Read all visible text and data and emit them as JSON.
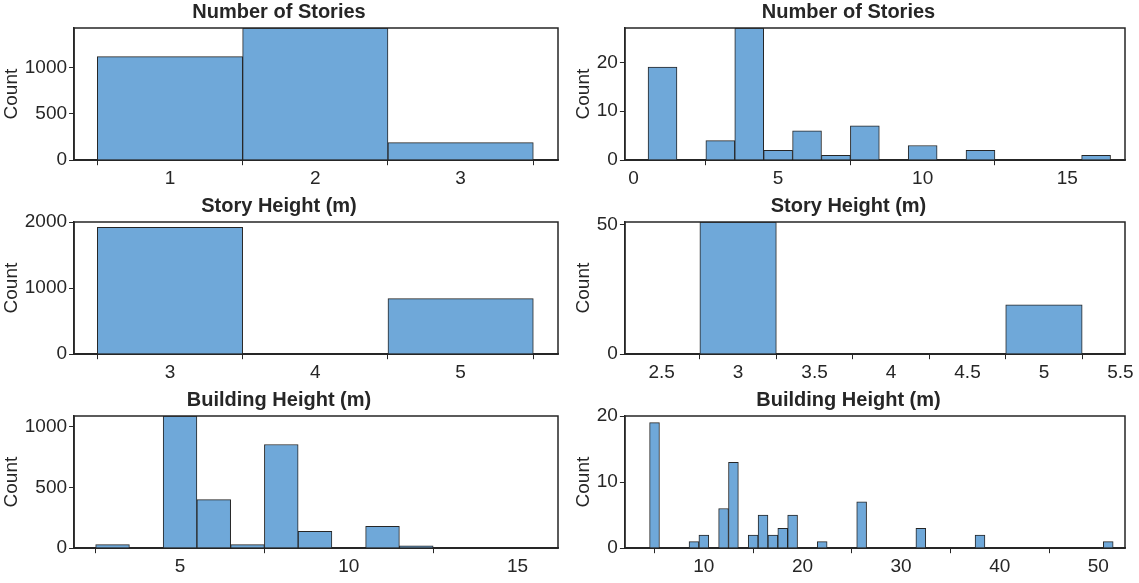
{
  "chart_data": [
    {
      "type": "histogram",
      "title": "Number of Stories",
      "ylabel": "Count",
      "color": "#6fa8d9",
      "bins": [
        0.5,
        1.5,
        2.5,
        3.5
      ],
      "values": [
        1120,
        1430,
        190
      ],
      "xlim": [
        0.34,
        3.67
      ],
      "ylim": [
        0,
        1430
      ],
      "xticks": [
        1,
        2,
        3
      ],
      "yticks": [
        0,
        500,
        1000
      ]
    },
    {
      "type": "histogram",
      "title": "Number of Stories",
      "ylabel": "Count",
      "color": "#6fa8d9",
      "bins": [
        0.5,
        1.5,
        2.5,
        3.5,
        4.5,
        5.5,
        6.5,
        7.5,
        8.5,
        9.5,
        10.5,
        11.5,
        12.5,
        13.5,
        14.5,
        15.5,
        16.5
      ],
      "values": [
        19,
        0,
        4,
        27,
        2,
        6,
        1,
        7,
        0,
        3,
        0,
        2,
        0,
        0,
        0,
        1
      ],
      "xlim": [
        -0.3,
        17
      ],
      "ylim": [
        0,
        27
      ],
      "xticks": [
        0,
        5,
        10,
        15
      ],
      "yticks": [
        0,
        10,
        20
      ]
    },
    {
      "type": "histogram",
      "title": "Story Height (m)",
      "ylabel": "Count",
      "color": "#6fa8d9",
      "bins": [
        2.5,
        3.5,
        4.5,
        5.5
      ],
      "values": [
        1920,
        0,
        840
      ],
      "xlim": [
        2.34,
        5.67
      ],
      "ylim": [
        0,
        2000
      ],
      "xticks": [
        3,
        4,
        5
      ],
      "yticks": [
        0,
        1000,
        2000
      ]
    },
    {
      "type": "histogram",
      "title": "Story Height (m)",
      "ylabel": "Count",
      "color": "#6fa8d9",
      "bins": [
        2.5,
        3.5,
        4.5,
        5.5
      ],
      "values": [
        51,
        0,
        19
      ],
      "xlim": [
        2.26,
        5.53
      ],
      "ylim": [
        0,
        51
      ],
      "xticks": [
        2.5,
        3,
        3.5,
        4,
        4.5,
        5,
        5.5
      ],
      "yticks": [
        0,
        50
      ]
    },
    {
      "type": "histogram",
      "title": "Building Height (m)",
      "ylabel": "Count",
      "color": "#6fa8d9",
      "bins": [
        2.5,
        3.5,
        4.5,
        5.5,
        6.5,
        7.5,
        8.5,
        9.5,
        10.5,
        11.5,
        12.5,
        13.5,
        14.5,
        15.5
      ],
      "values": [
        30,
        0,
        1090,
        400,
        30,
        855,
        140,
        0,
        180,
        20,
        0,
        0,
        0
      ],
      "xlim": [
        1.86,
        16.2
      ],
      "ylim": [
        0,
        1090
      ],
      "xticks": [
        5,
        10,
        15
      ],
      "yticks": [
        0,
        500,
        1000
      ]
    },
    {
      "type": "histogram",
      "title": "Building Height (m)",
      "ylabel": "Count",
      "color": "#6fa8d9",
      "bins": [
        4.5,
        5.5,
        6.5,
        7.5,
        8.5,
        9.5,
        10.5,
        11.5,
        12.5,
        13.5,
        14.5,
        15.5,
        16.5,
        17.5,
        18.5,
        19.5,
        20.5,
        21.5,
        22.5,
        23.5,
        24.5,
        25.5,
        26.5,
        27.5,
        28.5,
        29.5,
        30.5,
        31.5,
        32.5,
        33.5,
        34.5,
        35.5,
        36.5,
        37.5,
        38.5,
        39.5,
        40.5,
        41.5,
        42.5,
        43.5,
        44.5,
        45.5,
        46.5,
        47.5,
        48.5,
        49.5,
        50.5,
        51.5
      ],
      "values": [
        19,
        0,
        0,
        0,
        1,
        2,
        0,
        6,
        13,
        0,
        2,
        5,
        2,
        3,
        5,
        0,
        0,
        1,
        0,
        0,
        0,
        7,
        0,
        0,
        0,
        0,
        0,
        3,
        0,
        0,
        0,
        0,
        0,
        2,
        0,
        0,
        0,
        0,
        0,
        0,
        0,
        0,
        0,
        0,
        0,
        0,
        1
      ],
      "xlim": [
        2,
        52.7
      ],
      "ylim": [
        0,
        20
      ],
      "xticks": [
        10,
        20,
        30,
        40,
        50
      ],
      "yticks": [
        0,
        10,
        20
      ]
    }
  ]
}
